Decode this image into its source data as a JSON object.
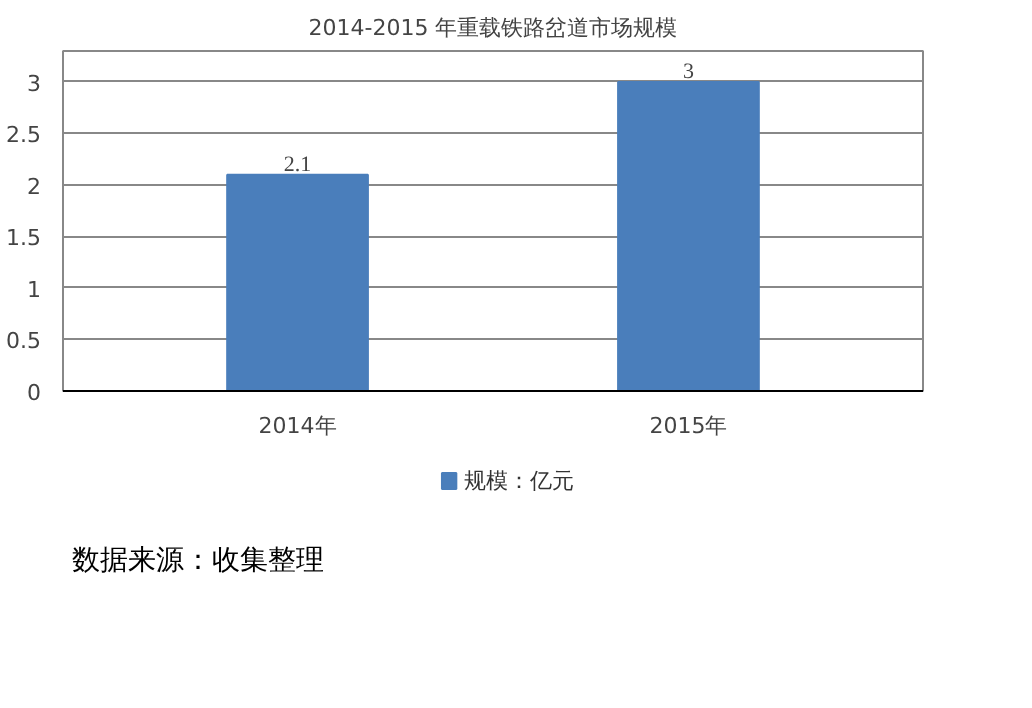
{
  "chart_data": {
    "type": "bar",
    "title": "2014-2015 年重载铁路岔道市场规模",
    "categories": [
      "2014年",
      "2015年"
    ],
    "series": [
      {
        "name": "规模：亿元",
        "color": "#4a7ebb",
        "values": [
          2.1,
          3
        ]
      }
    ],
    "ylim": [
      0,
      3.3
    ],
    "yticks": [
      0,
      0.5,
      1,
      1.5,
      2,
      2.5,
      3
    ],
    "grid": "y",
    "legend": "bottom",
    "data_labels": true,
    "annotations": [
      "数据来源：收集整理"
    ]
  }
}
